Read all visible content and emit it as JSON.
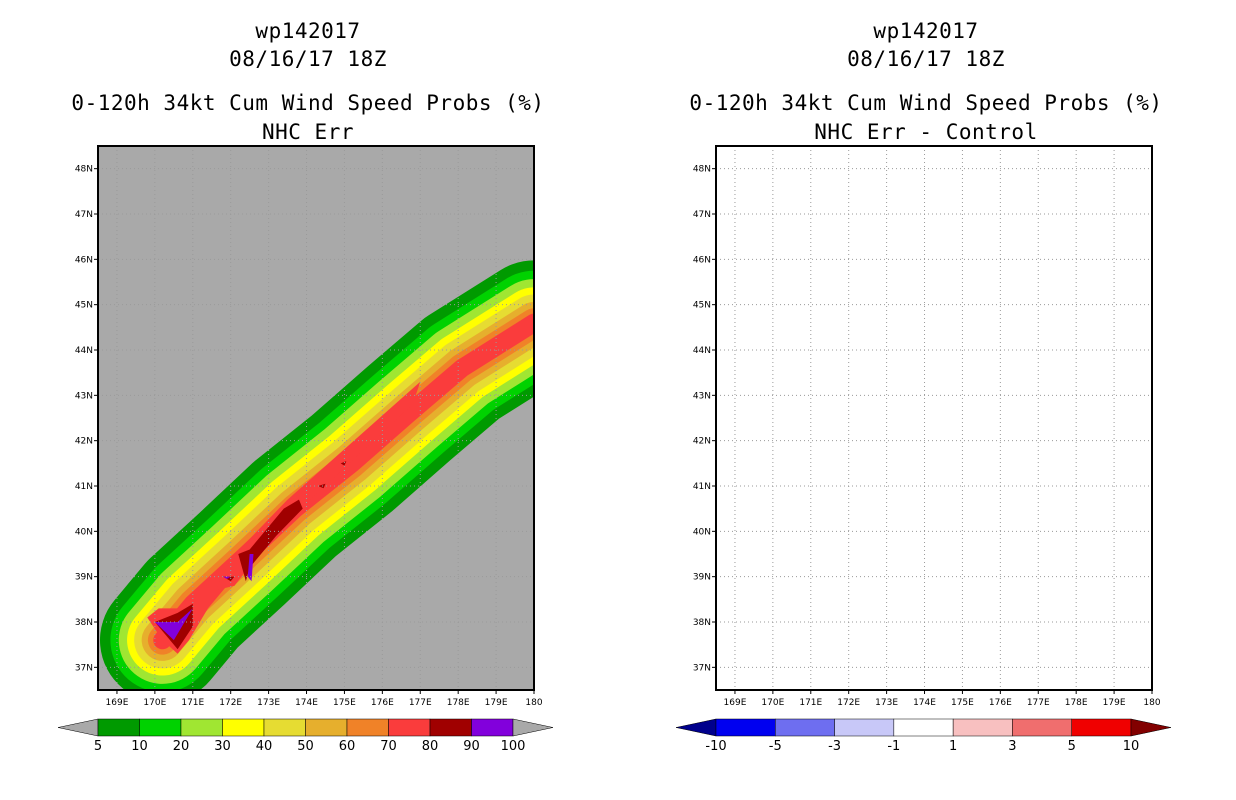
{
  "chart_data": [
    {
      "type": "filled-contour-map",
      "id": "left",
      "storm": "wp142017",
      "datetime": "08/16/17 18Z",
      "title": "0-120h 34kt Cum Wind Speed Probs (%)",
      "subtitle": "NHC Err",
      "background_color": "#a9a9a9",
      "lon_range": [
        168.5,
        180
      ],
      "lat_range": [
        36.5,
        48.5
      ],
      "x_ticks": [
        "169E",
        "170E",
        "171E",
        "172E",
        "173E",
        "174E",
        "175E",
        "176E",
        "177E",
        "178E",
        "179E",
        "180"
      ],
      "y_ticks": [
        "37N",
        "38N",
        "39N",
        "40N",
        "41N",
        "42N",
        "43N",
        "44N",
        "45N",
        "46N",
        "47N",
        "48N"
      ],
      "colorbar": {
        "levels": [
          "5",
          "10",
          "20",
          "30",
          "40",
          "50",
          "60",
          "70",
          "80",
          "90",
          "100"
        ],
        "colors": [
          "#009a00",
          "#00d200",
          "#a0e632",
          "#ffff00",
          "#e6dc32",
          "#e6af2d",
          "#f08228",
          "#fa3c3c",
          "#a00000",
          "#8200dc"
        ],
        "end_colors": [
          "#a9a9a9",
          "#a9a9a9"
        ]
      },
      "swath_bands": [
        {
          "min": 5,
          "color": "#009a00",
          "half_width_deg": 1.5
        },
        {
          "min": 10,
          "color": "#00d200",
          "half_width_deg": 1.25
        },
        {
          "min": 20,
          "color": "#a0e632",
          "half_width_deg": 1.05
        },
        {
          "min": 30,
          "color": "#ffff00",
          "half_width_deg": 0.85
        },
        {
          "min": 40,
          "color": "#e6dc32",
          "half_width_deg": 0.68
        },
        {
          "min": 50,
          "color": "#e6af2d",
          "half_width_deg": 0.5
        },
        {
          "min": 60,
          "color": "#f08228",
          "half_width_deg": 0.35
        },
        {
          "min": 70,
          "color": "#fa3c3c",
          "half_width_deg": 0.22
        }
      ],
      "track_deg": [
        [
          170.2,
          37.6
        ],
        [
          171.0,
          38.4
        ],
        [
          172.3,
          39.4
        ],
        [
          173.7,
          40.5
        ],
        [
          175.2,
          41.5
        ],
        [
          176.7,
          42.6
        ],
        [
          178.1,
          43.6
        ],
        [
          180.0,
          44.6
        ]
      ],
      "extra_polygons_deg": [
        {
          "color": "#fa3c3c",
          "points": [
            [
              169.8,
              38.1
            ],
            [
              170.1,
              38.3
            ],
            [
              170.6,
              38.3
            ],
            [
              171.2,
              38.6
            ],
            [
              171.7,
              38.9
            ],
            [
              171.9,
              38.8
            ],
            [
              171.4,
              38.3
            ],
            [
              170.9,
              37.6
            ],
            [
              170.6,
              37.3
            ],
            [
              170.2,
              37.6
            ]
          ]
        },
        {
          "color": "#fa3c3c",
          "points": [
            [
              172.0,
              39.4
            ],
            [
              173.5,
              40.7
            ],
            [
              177.0,
              43.3
            ],
            [
              176.8,
              42.8
            ],
            [
              173.2,
              40.0
            ],
            [
              172.1,
              38.8
            ],
            [
              171.6,
              38.7
            ]
          ]
        },
        {
          "color": "#a00000",
          "points": [
            [
              170.0,
              38.0
            ],
            [
              170.6,
              37.4
            ],
            [
              171.0,
              37.9
            ],
            [
              171.0,
              38.4
            ],
            [
              170.6,
              38.2
            ]
          ]
        },
        {
          "color": "#a00000",
          "points": [
            [
              172.2,
              39.5
            ],
            [
              172.5,
              39.6
            ],
            [
              173.4,
              40.5
            ],
            [
              173.8,
              40.7
            ],
            [
              173.9,
              40.5
            ],
            [
              173.2,
              39.9
            ],
            [
              172.5,
              39.2
            ],
            [
              172.4,
              38.9
            ]
          ]
        },
        {
          "color": "#a00000",
          "points": [
            [
              171.8,
              39.0
            ],
            [
              172.1,
              39.0
            ],
            [
              172.0,
              38.9
            ]
          ]
        },
        {
          "color": "#a00000",
          "points": [
            [
              174.3,
              41.0
            ],
            [
              174.5,
              41.05
            ],
            [
              174.45,
              40.95
            ]
          ]
        },
        {
          "color": "#a00000",
          "points": [
            [
              174.9,
              41.5
            ],
            [
              175.05,
              41.55
            ],
            [
              175.0,
              41.45
            ]
          ]
        },
        {
          "color": "#8200dc",
          "points": [
            [
              170.0,
              38.0
            ],
            [
              170.5,
              37.6
            ],
            [
              171.0,
              38.3
            ],
            [
              170.6,
              38.0
            ],
            [
              170.3,
              38.0
            ]
          ]
        },
        {
          "color": "#8200dc",
          "points": [
            [
              172.5,
              39.5
            ],
            [
              172.6,
              39.5
            ],
            [
              172.55,
              38.9
            ],
            [
              172.45,
              39.0
            ]
          ]
        },
        {
          "color": "#8200dc",
          "points": [
            [
              171.8,
              39.0
            ],
            [
              172.0,
              39.0
            ],
            [
              171.9,
              38.95
            ]
          ]
        }
      ]
    },
    {
      "type": "filled-contour-map",
      "id": "right",
      "storm": "wp142017",
      "datetime": "08/16/17 18Z",
      "title": "0-120h 34kt Cum Wind Speed Probs (%)",
      "subtitle": "NHC Err - Control",
      "background_color": "#ffffff",
      "lon_range": [
        168.5,
        180
      ],
      "lat_range": [
        36.5,
        48.5
      ],
      "x_ticks": [
        "169E",
        "170E",
        "171E",
        "172E",
        "173E",
        "174E",
        "175E",
        "176E",
        "177E",
        "178E",
        "179E",
        "180"
      ],
      "y_ticks": [
        "37N",
        "38N",
        "39N",
        "40N",
        "41N",
        "42N",
        "43N",
        "44N",
        "45N",
        "46N",
        "47N",
        "48N"
      ],
      "colorbar": {
        "levels": [
          "-10",
          "-5",
          "-3",
          "-1",
          "1",
          "3",
          "5",
          "10"
        ],
        "colors": [
          "#0000f0",
          "#6e6ef0",
          "#c8c8f8",
          "#ffffff",
          "#f8c0c0",
          "#f06e6e",
          "#f00000"
        ],
        "end_colors": [
          "#00008c",
          "#820000"
        ]
      },
      "swath_bands": [],
      "track_deg": [],
      "extra_polygons_deg": []
    }
  ]
}
